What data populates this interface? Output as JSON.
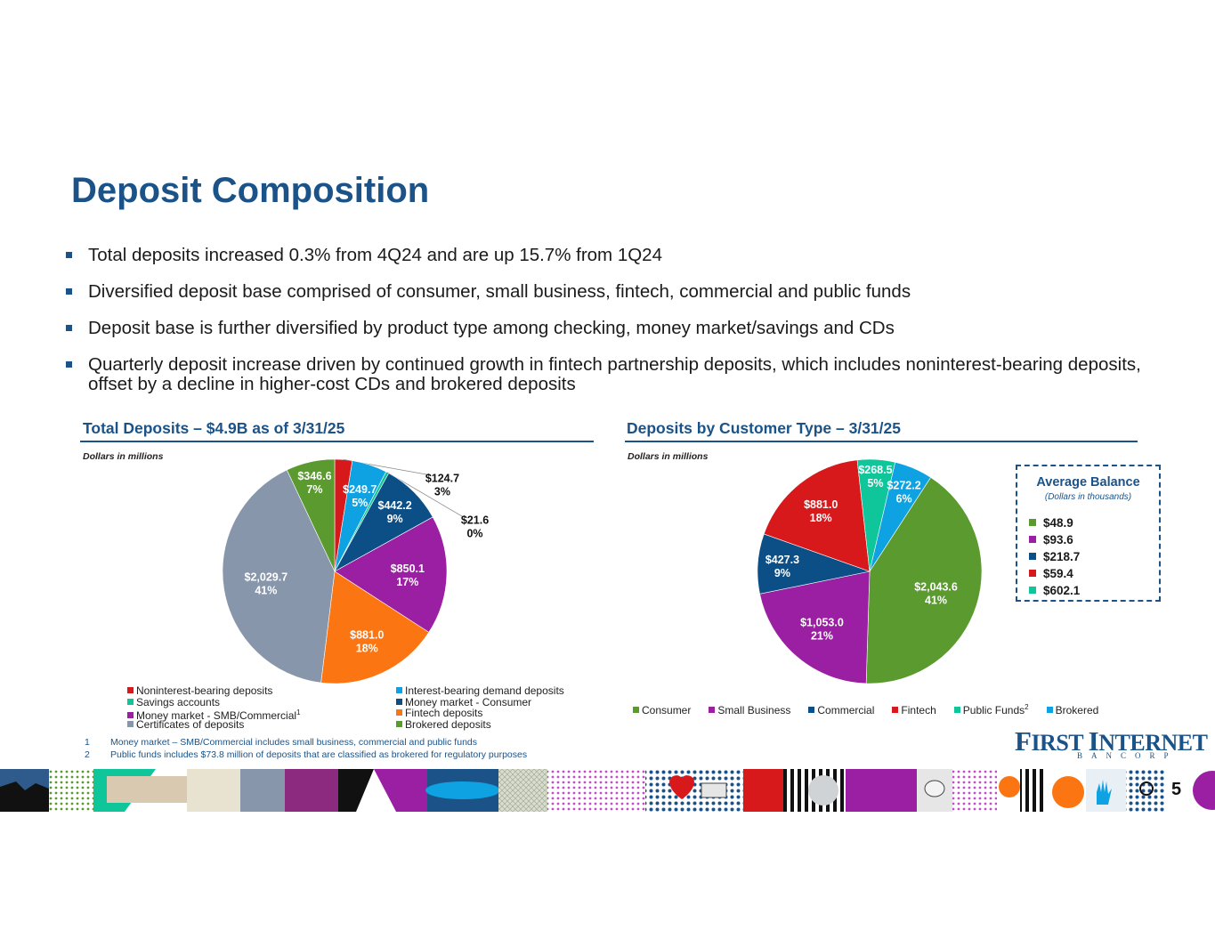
{
  "title": "Deposit Composition",
  "bullets": [
    "Total deposits increased 0.3% from 4Q24 and are up 15.7% from 1Q24",
    "Diversified deposit base comprised of consumer, small business, fintech, commercial and public funds",
    "Deposit base is further diversified by product type among checking, money market/savings and CDs",
    "Quarterly deposit increase driven by continued growth in fintech partnership deposits, which includes noninterest-bearing deposits, offset by a decline in higher-cost CDs and brokered deposits"
  ],
  "left_section": {
    "title": "Total Deposits – $4.9B as of 3/31/25",
    "units": "Dollars in millions"
  },
  "right_section": {
    "title": "Deposits by Customer Type – 3/31/25",
    "units": "Dollars in millions"
  },
  "chart_data": [
    {
      "type": "pie",
      "title": "Total Deposits – $4.9B as of 3/31/25",
      "slices": [
        {
          "name": "Noninterest-bearing deposits",
          "value": 124.7,
          "pct": "3%",
          "label": "$124.7",
          "color": "#d7191c"
        },
        {
          "name": "Interest-bearing demand deposits",
          "value": 249.7,
          "pct": "5%",
          "label": "$249.7",
          "color": "#0ea2e2"
        },
        {
          "name": "Savings accounts",
          "value": 21.6,
          "pct": "0%",
          "label": "$21.6",
          "color": "#0fc59a"
        },
        {
          "name": "Money market - Consumer",
          "value": 442.2,
          "pct": "9%",
          "label": "$442.2",
          "color": "#0c4f86"
        },
        {
          "name": "Money market - SMB/Commercial",
          "value": 850.1,
          "pct": "17%",
          "label": "$850.1",
          "color": "#9b1fa3"
        },
        {
          "name": "Fintech deposits",
          "value": 881.0,
          "pct": "18%",
          "label": "$881.0",
          "color": "#fb7512"
        },
        {
          "name": "Certificates of deposits",
          "value": 2029.7,
          "pct": "41%",
          "label": "$2,029.7",
          "color": "#8796ab"
        },
        {
          "name": "Brokered deposits",
          "value": 346.6,
          "pct": "7%",
          "label": "$346.6",
          "color": "#5a9a2f"
        }
      ],
      "legend": [
        {
          "name": "Noninterest-bearing deposits",
          "color": "#d7191c"
        },
        {
          "name": "Interest-bearing demand deposits",
          "color": "#0ea2e2"
        },
        {
          "name": "Savings accounts",
          "color": "#0fc59a"
        },
        {
          "name": "Money market - Consumer",
          "color": "#0c4f86"
        },
        {
          "name": "Money market - SMB/Commercial",
          "color": "#9b1fa3",
          "sup": "1"
        },
        {
          "name": "Fintech deposits",
          "color": "#fb7512"
        },
        {
          "name": "Certificates of deposits",
          "color": "#8796ab"
        },
        {
          "name": "Brokered deposits",
          "color": "#5a9a2f"
        }
      ]
    },
    {
      "type": "pie",
      "title": "Deposits by Customer Type – 3/31/25",
      "slices": [
        {
          "name": "Consumer",
          "value": 2043.6,
          "pct": "41%",
          "label": "$2,043.6",
          "color": "#5a9a2f"
        },
        {
          "name": "Small Business",
          "value": 1053.0,
          "pct": "21%",
          "label": "$1,053.0",
          "color": "#9b1fa3"
        },
        {
          "name": "Commercial",
          "value": 427.3,
          "pct": "9%",
          "label": "$427.3",
          "color": "#0c4f86"
        },
        {
          "name": "Fintech",
          "value": 881.0,
          "pct": "18%",
          "label": "$881.0",
          "color": "#d7191c"
        },
        {
          "name": "Public Funds",
          "value": 268.5,
          "pct": "5%",
          "label": "$268.5",
          "color": "#0fc59a"
        },
        {
          "name": "Brokered",
          "value": 272.2,
          "pct": "6%",
          "label": "$272.2",
          "color": "#0ea2e2"
        }
      ],
      "legend": [
        {
          "name": "Consumer",
          "color": "#5a9a2f"
        },
        {
          "name": "Small Business",
          "color": "#9b1fa3"
        },
        {
          "name": "Commercial",
          "color": "#0c4f86"
        },
        {
          "name": "Fintech",
          "color": "#d7191c"
        },
        {
          "name": "Public Funds",
          "color": "#0fc59a",
          "sup": "2"
        },
        {
          "name": "Brokered",
          "color": "#0ea2e2"
        }
      ]
    }
  ],
  "average_balance": {
    "title": "Average Balance",
    "subtitle": "(Dollars in thousands)",
    "items": [
      {
        "value": "$48.9",
        "color": "#5a9a2f"
      },
      {
        "value": "$93.6",
        "color": "#9b1fa3"
      },
      {
        "value": "$218.7",
        "color": "#0c4f86"
      },
      {
        "value": "$59.4",
        "color": "#d7191c"
      },
      {
        "value": "$602.1",
        "color": "#0fc59a"
      }
    ]
  },
  "footnotes": [
    {
      "num": "1",
      "text": "Money market – SMB/Commercial includes small business, commercial and public funds"
    },
    {
      "num": "2",
      "text": "Public funds includes $73.8 million of deposits that are classified as brokered for regulatory purposes"
    }
  ],
  "logo": {
    "line1_big1": "F",
    "line1_small1": "IRST ",
    "line1_big2": "I",
    "line1_small2": "NTERNET",
    "line2": "BANCORP"
  },
  "page_number": "5"
}
